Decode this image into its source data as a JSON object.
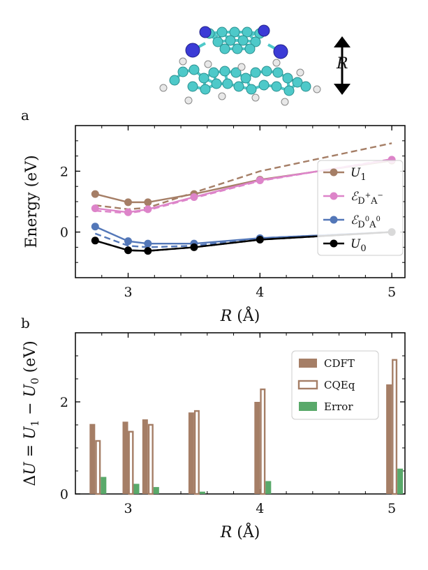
{
  "figure": {
    "panel_a_label": "a",
    "panel_b_label": "b",
    "molecule": {
      "arrow_label": "R",
      "atom_colors": {
        "carbon": "#4ec9c9",
        "nitrogen": "#3b3bd6",
        "hydrogen": "#e8e8e8"
      }
    }
  },
  "chart_data": [
    {
      "type": "line",
      "panel": "a",
      "xlabel_var": "R",
      "xlabel_unit": "(Å)",
      "ylabel": "Energy (eV)",
      "xlim": [
        2.6,
        5.1
      ],
      "ylim": [
        -1.5,
        3.5
      ],
      "xticks": [
        3,
        4,
        5
      ],
      "yticks": [
        0,
        2
      ],
      "grid": false,
      "legend_position": "right",
      "x": [
        2.75,
        3.0,
        3.15,
        3.5,
        4.0,
        5.0
      ],
      "series": [
        {
          "name": "U1",
          "legend_main": "U",
          "legend_sub": "1",
          "color": "#a57e66",
          "values": [
            1.25,
            0.98,
            0.98,
            1.25,
            1.72,
            2.35
          ],
          "dashed_values": [
            0.88,
            0.75,
            0.8,
            1.3,
            2.0,
            2.92
          ]
        },
        {
          "name": "ℰD+A−",
          "legend_main": "ℰ",
          "legend_sub": "D",
          "legend_sup1": "+",
          "legend_sub2": "A",
          "legend_sup2": "−",
          "color": "#dd84c9",
          "values": [
            0.78,
            0.65,
            0.75,
            1.15,
            1.7,
            2.38
          ],
          "dashed_values": [
            0.7,
            0.62,
            0.72,
            1.12,
            1.68,
            2.4
          ]
        },
        {
          "name": "ℰD0A0",
          "legend_main": "ℰ",
          "legend_sub": "D",
          "legend_sup1": "0",
          "legend_sub2": "A",
          "legend_sup2": "0",
          "color": "#5377b8",
          "values": [
            0.18,
            -0.3,
            -0.38,
            -0.38,
            -0.2,
            0.0
          ],
          "dashed_values": [
            -0.05,
            -0.45,
            -0.5,
            -0.45,
            -0.2,
            0.0
          ]
        },
        {
          "name": "U0",
          "legend_main": "U",
          "legend_sub": "0",
          "color": "#000000",
          "values": [
            -0.28,
            -0.6,
            -0.62,
            -0.5,
            -0.25,
            0.0
          ],
          "dashed_values": [
            -0.28,
            -0.6,
            -0.62,
            -0.5,
            -0.25,
            0.0
          ]
        }
      ]
    },
    {
      "type": "bar",
      "panel": "b",
      "xlabel_var": "R",
      "xlabel_unit": "(Å)",
      "ylabel": "ΔU = U1 − U0 (eV)",
      "xlim": [
        2.6,
        5.1
      ],
      "ylim": [
        0,
        3.5
      ],
      "xticks": [
        3,
        4,
        5
      ],
      "yticks": [
        0,
        2
      ],
      "grid": false,
      "legend_position": "top-right",
      "x": [
        2.75,
        3.0,
        3.15,
        3.5,
        4.0,
        5.0
      ],
      "series": [
        {
          "name": "CDFT",
          "style": "filled",
          "color": "#a57e66",
          "values": [
            1.52,
            1.57,
            1.62,
            1.77,
            2.0,
            2.38
          ]
        },
        {
          "name": "CQEq",
          "style": "hollow",
          "color": "#a57e66",
          "values": [
            1.17,
            1.37,
            1.52,
            1.82,
            2.29,
            2.93
          ]
        },
        {
          "name": "Error",
          "style": "filled",
          "color": "#59a96a",
          "values": [
            0.37,
            0.22,
            0.15,
            0.05,
            0.28,
            0.55
          ]
        }
      ]
    }
  ]
}
